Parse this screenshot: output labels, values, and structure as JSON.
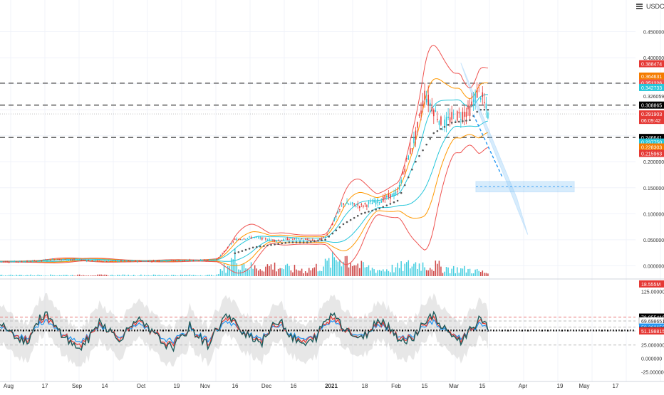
{
  "quote_currency": "USDC",
  "window_controls": {
    "menu_icon": "hamburger-icon"
  },
  "colors": {
    "candle_up": "#26c6da",
    "candle_down": "#e53935",
    "volume_up": "#26c6da",
    "volume_down": "#c62828",
    "band_outer": "#ef5350",
    "band_mid": "#ff9800",
    "band_inner": "#26c6da",
    "sar": "#555555",
    "level_line": "#666666",
    "channel": "#90caf9",
    "rsi_main": "#1e5b5b",
    "rsi_fast": "#e53935",
    "rsi_slow": "#2196f3",
    "rsi_band": "#cfcfcf"
  },
  "chart_data": [
    {
      "type": "candlestick",
      "title": "",
      "quote": "USDC",
      "ylim": [
        -0.02,
        0.5
      ],
      "y_ticks": [
        "0.450000",
        "0.400000",
        "0.326059",
        "0.278378",
        "0.200000",
        "0.150000",
        "0.100000",
        "0.050000",
        "0.000000"
      ],
      "price_tags": [
        {
          "label": "0.388474",
          "value": 0.388474,
          "color": "#e53935"
        },
        {
          "label": "0.364631",
          "value": 0.364631,
          "color": "#f57c00"
        },
        {
          "label": "0.351226",
          "value": 0.351226,
          "color": "#ef5350"
        },
        {
          "label": "0.342733",
          "value": 0.342733,
          "color": "#26c6da"
        },
        {
          "label": "0.308865",
          "value": 0.308865,
          "color": "#000000"
        },
        {
          "label": "0.291903",
          "value": 0.291903,
          "color": "#e53935"
        },
        {
          "label": "06:09:42",
          "value": 0.2795,
          "color": "#e53935"
        },
        {
          "label": "0.246641",
          "value": 0.246641,
          "color": "#000000"
        },
        {
          "label": "0.237750",
          "value": 0.23775,
          "color": "#26c6da"
        },
        {
          "label": "0.228303",
          "value": 0.228303,
          "color": "#f57c00"
        },
        {
          "label": "0.215963",
          "value": 0.215963,
          "color": "#e53935"
        },
        {
          "label": "18.555M",
          "value": -0.035,
          "color": "#e53935"
        }
      ],
      "horizontal_levels": [
        0.351,
        0.308865,
        0.246641
      ],
      "series": [
        {
          "name": "",
          "kind": "close_price",
          "x": [
            0,
            10,
            20,
            30,
            40,
            50,
            60,
            70,
            80,
            90,
            100,
            110,
            120,
            130,
            140,
            150,
            155,
            160,
            170,
            175,
            180,
            190,
            200,
            210,
            220,
            225,
            230,
            235,
            240,
            245,
            250,
            255,
            260,
            265,
            270
          ],
          "values": [
            0.008,
            0.008,
            0.009,
            0.012,
            0.012,
            0.01,
            0.009,
            0.009,
            0.009,
            0.01,
            0.01,
            0.01,
            0.012,
            0.05,
            0.055,
            0.05,
            0.048,
            0.052,
            0.05,
            0.048,
            0.055,
            0.12,
            0.115,
            0.125,
            0.14,
            0.2,
            0.25,
            0.33,
            0.3,
            0.27,
            0.285,
            0.29,
            0.3,
            0.34,
            0.291
          ]
        },
        {
          "name": "",
          "kind": "sar",
          "x": [
            130,
            140,
            150,
            160,
            170,
            180,
            190,
            200,
            210,
            220,
            230,
            240,
            250,
            260,
            265,
            270
          ],
          "values": [
            0.024,
            0.035,
            0.04,
            0.045,
            0.045,
            0.05,
            0.08,
            0.1,
            0.11,
            0.125,
            0.2,
            0.255,
            0.275,
            0.28,
            0.3,
            0.3
          ]
        },
        {
          "name": "",
          "kind": "volume",
          "x": [
            0,
            20,
            40,
            60,
            80,
            100,
            120,
            130,
            135,
            140,
            150,
            160,
            170,
            180,
            190,
            200,
            210,
            220,
            230,
            240,
            250,
            260,
            270
          ],
          "values": [
            1,
            1,
            1,
            1,
            1,
            1,
            1,
            18,
            12,
            8,
            10,
            7,
            6,
            11,
            20,
            9,
            6,
            8,
            12,
            10,
            7,
            6,
            3
          ]
        }
      ]
    },
    {
      "type": "line",
      "title": "",
      "ylim": [
        -35,
        140
      ],
      "y_ticks": [
        "125.000000",
        "76.955410",
        "69.698651",
        "58.362659",
        "51.966212",
        "51.198815",
        "25.000000",
        "0.000000",
        "-25.000000"
      ],
      "reference_levels": [
        76.95,
        69.7,
        58.36,
        51.97,
        51.2,
        25.0
      ],
      "series": [
        {
          "name": "",
          "kind": "oscillator",
          "values": [
            72,
            55,
            40,
            30,
            65,
            85,
            60,
            45,
            25,
            20,
            40,
            70,
            55,
            35,
            50,
            75,
            60,
            45,
            30,
            20,
            35,
            60,
            40,
            25,
            55,
            80,
            65,
            50,
            40,
            30,
            55,
            75,
            45,
            30,
            25,
            40,
            70,
            85,
            60,
            45,
            35,
            55,
            75,
            60,
            40,
            30,
            45,
            70,
            80,
            55,
            45,
            30,
            55,
            70,
            58
          ]
        }
      ]
    }
  ],
  "x_axis_labels": [
    "Aug",
    "17",
    "Sep",
    "14",
    "Oct",
    "19",
    "Nov",
    "16",
    "Dec",
    "16",
    "2021",
    "18",
    "Feb",
    "15",
    "Mar",
    "15",
    "Apr",
    "19",
    "May",
    "17"
  ]
}
